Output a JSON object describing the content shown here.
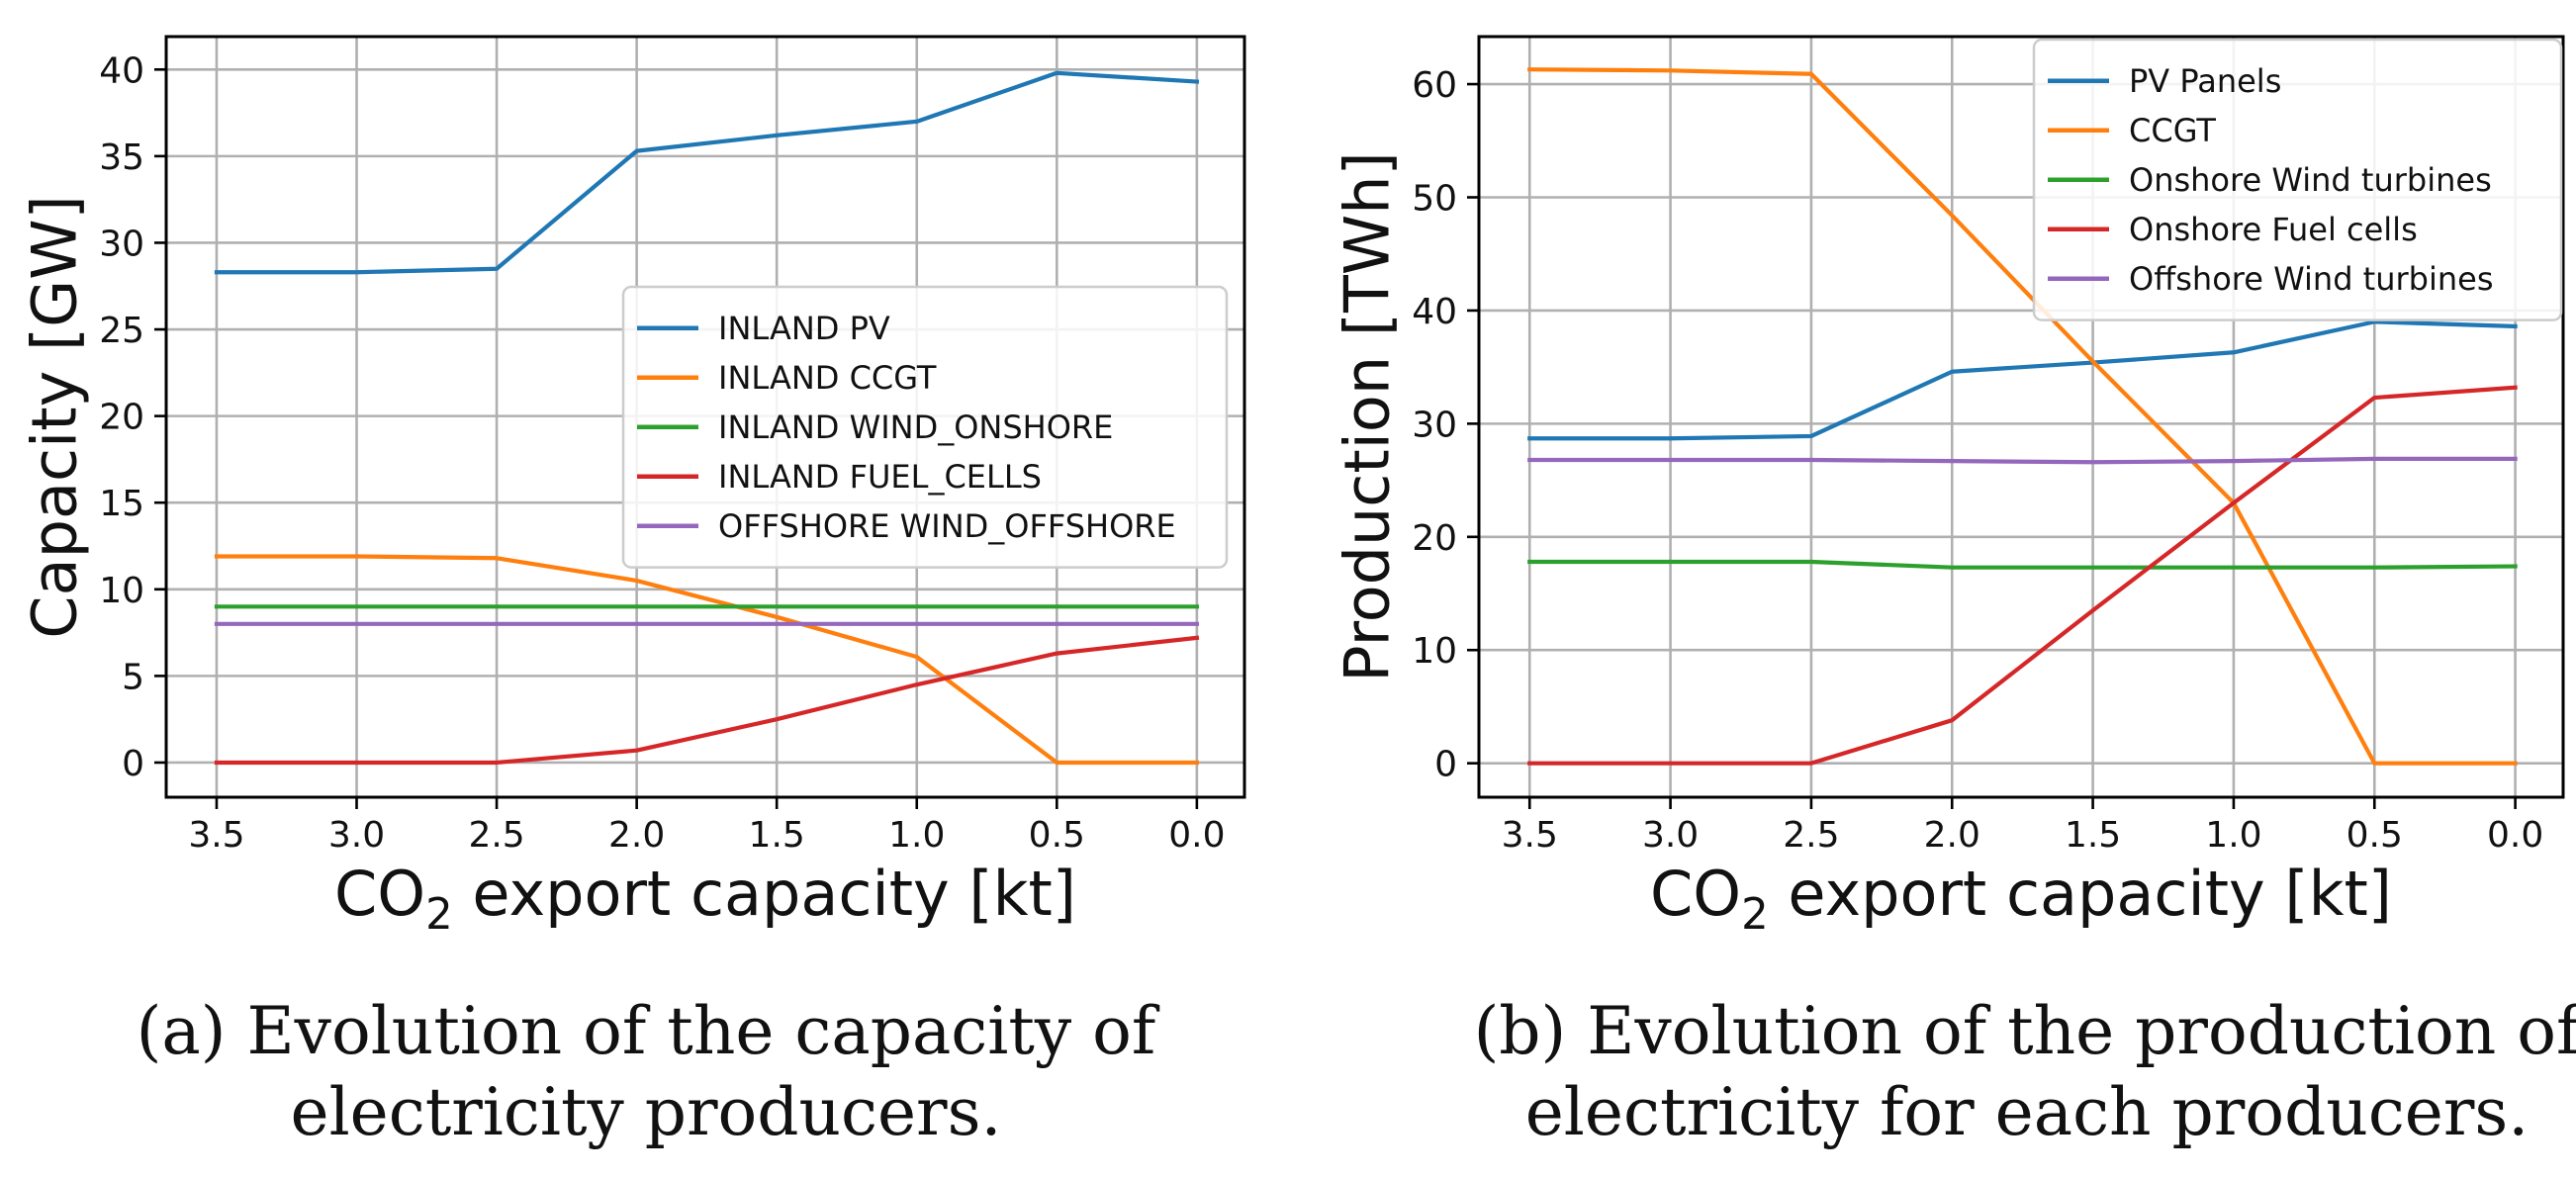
{
  "chart_data": [
    {
      "type": "line",
      "panel": "a",
      "ylabel": "Capacity [GW]",
      "xlabel_prefix": "CO",
      "xlabel_sub": "2",
      "xlabel_suffix": " export capacity [kt]",
      "x": [
        3.5,
        3.0,
        2.5,
        2.0,
        1.5,
        1.0,
        0.5,
        0.0
      ],
      "xticks": [
        "3.5",
        "3.0",
        "2.5",
        "2.0",
        "1.5",
        "1.0",
        "0.5",
        "0.0"
      ],
      "xlim": [
        3.68,
        -0.17
      ],
      "ylim": [
        -2,
        41.9
      ],
      "yticks": [
        0,
        5,
        10,
        15,
        20,
        25,
        30,
        35,
        40
      ],
      "ytick_labels": [
        "0",
        "5",
        "10",
        "15",
        "20",
        "25",
        "30",
        "35",
        "40"
      ],
      "grid": true,
      "legend_position": "center-right",
      "series": [
        {
          "name": "INLAND PV",
          "color": "#1f77b4",
          "values": [
            28.3,
            28.3,
            28.5,
            35.3,
            36.2,
            37.0,
            39.8,
            39.3
          ]
        },
        {
          "name": "INLAND CCGT",
          "color": "#ff7f0e",
          "values": [
            11.9,
            11.9,
            11.8,
            10.5,
            8.4,
            6.1,
            0.0,
            0.0
          ]
        },
        {
          "name": "INLAND WIND_ONSHORE",
          "color": "#2ca02c",
          "values": [
            9.0,
            9.0,
            9.0,
            9.0,
            9.0,
            9.0,
            9.0,
            9.0
          ]
        },
        {
          "name": "INLAND FUEL_CELLS",
          "color": "#d62728",
          "values": [
            0.0,
            0.0,
            0.0,
            0.7,
            2.5,
            4.5,
            6.3,
            7.2
          ]
        },
        {
          "name": "OFFSHORE WIND_OFFSHORE",
          "color": "#9467bd",
          "values": [
            8.0,
            8.0,
            8.0,
            8.0,
            8.0,
            8.0,
            8.0,
            8.0
          ]
        }
      ]
    },
    {
      "type": "line",
      "panel": "b",
      "ylabel": "Production [TWh]",
      "xlabel_prefix": "CO",
      "xlabel_sub": "2",
      "xlabel_suffix": " export capacity [kt]",
      "x": [
        3.5,
        3.0,
        2.5,
        2.0,
        1.5,
        1.0,
        0.5,
        0.0
      ],
      "xticks": [
        "3.5",
        "3.0",
        "2.5",
        "2.0",
        "1.5",
        "1.0",
        "0.5",
        "0.0"
      ],
      "xlim": [
        3.68,
        -0.17
      ],
      "ylim": [
        -3,
        64.2
      ],
      "yticks": [
        0,
        10,
        20,
        30,
        40,
        50,
        60
      ],
      "ytick_labels": [
        "0",
        "10",
        "20",
        "30",
        "40",
        "50",
        "60"
      ],
      "grid": true,
      "legend_position": "top-right",
      "series": [
        {
          "name": "PV Panels",
          "color": "#1f77b4",
          "values": [
            28.7,
            28.7,
            28.9,
            34.6,
            35.4,
            36.3,
            39.0,
            38.6
          ]
        },
        {
          "name": "CCGT",
          "color": "#ff7f0e",
          "values": [
            61.3,
            61.2,
            60.9,
            48.4,
            35.5,
            23.0,
            0.0,
            0.0
          ]
        },
        {
          "name": "Onshore Wind turbines",
          "color": "#2ca02c",
          "values": [
            17.8,
            17.8,
            17.8,
            17.3,
            17.3,
            17.3,
            17.3,
            17.4
          ]
        },
        {
          "name": "Onshore Fuel cells",
          "color": "#d62728",
          "values": [
            0.0,
            0.0,
            0.0,
            3.8,
            13.5,
            23.0,
            32.3,
            33.2
          ]
        },
        {
          "name": "Offshore Wind turbines",
          "color": "#9467bd",
          "values": [
            26.8,
            26.8,
            26.8,
            26.7,
            26.6,
            26.7,
            26.9,
            26.9
          ]
        }
      ]
    }
  ],
  "captions": {
    "a_line1": "(a) Evolution of the capacity of",
    "a_line2": "electricity producers.",
    "b_line1": "(b) Evolution of the production of",
    "b_line2": "electricity for each producers."
  }
}
